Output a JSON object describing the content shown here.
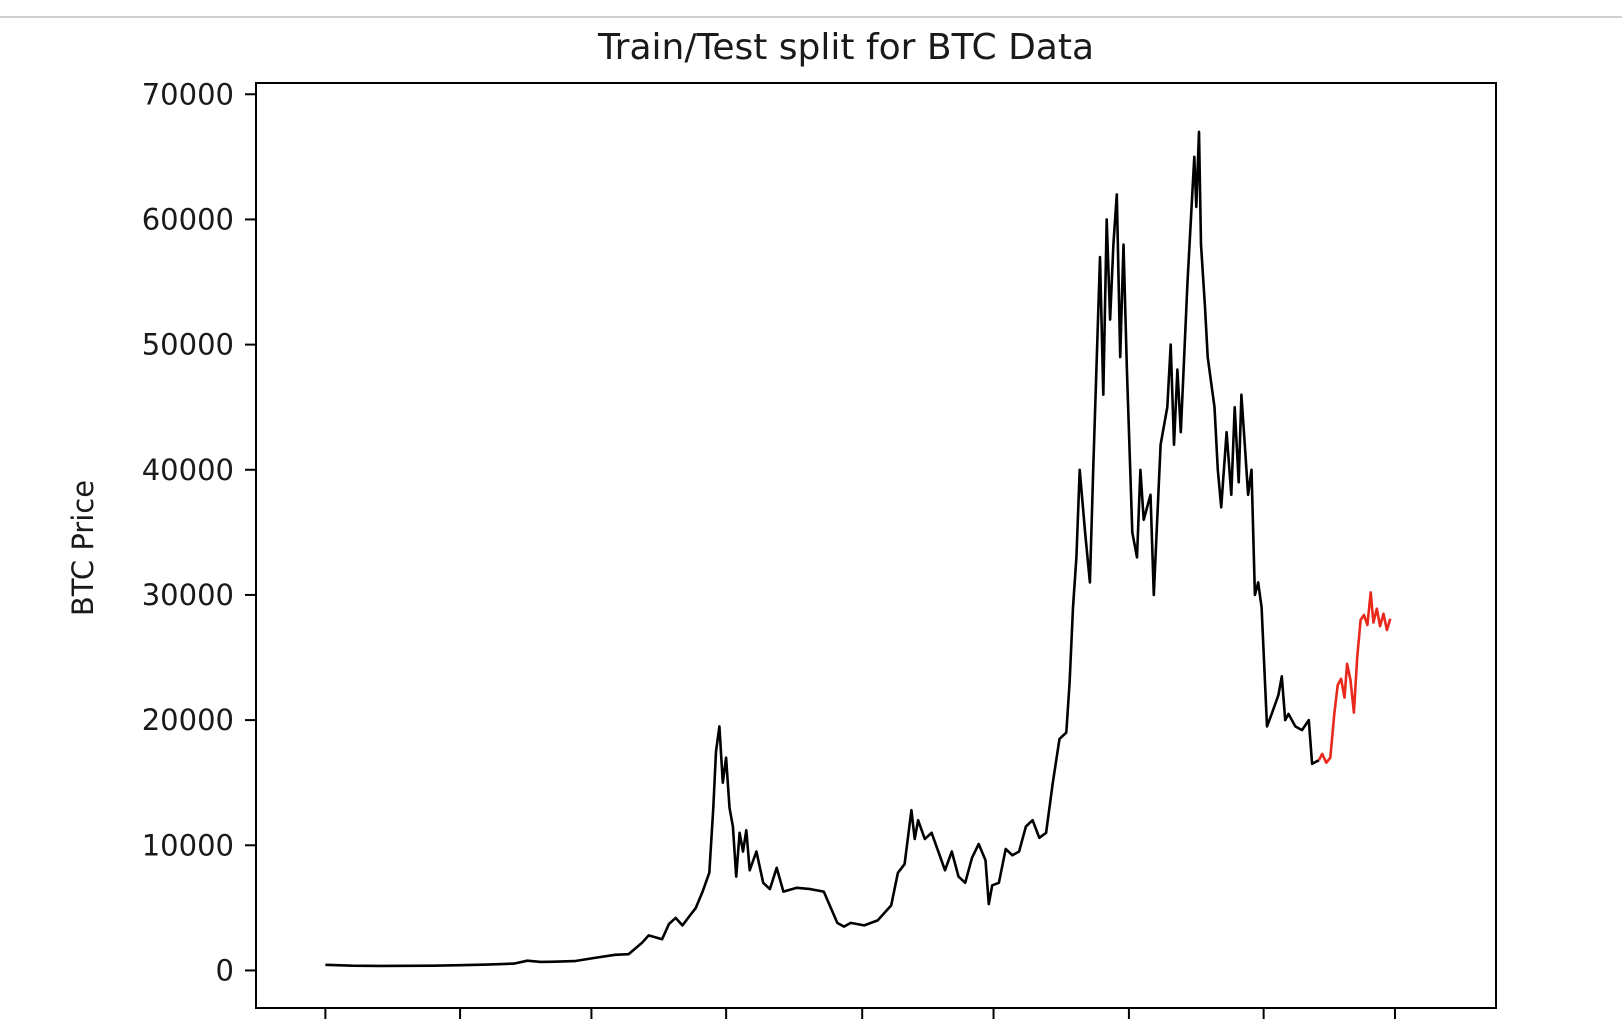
{
  "chart_data": {
    "type": "line",
    "title": "Train/Test split for BTC Data",
    "xlabel": "",
    "ylabel": "BTC Price",
    "ylim": [
      -3000,
      70900
    ],
    "y_ticks": [
      0,
      10000,
      20000,
      30000,
      40000,
      50000,
      60000,
      70000
    ],
    "y_tick_labels": [
      "0",
      "10000",
      "20000",
      "30000",
      "40000",
      "50000",
      "60000",
      "70000"
    ],
    "x_index_range": [
      -103,
      1738
    ],
    "x_tick_indices": [
      0,
      200,
      395,
      595,
      797,
      992,
      1193,
      1393,
      1588
    ],
    "x_tick_labels_visible": false,
    "grid": false,
    "legend": "none",
    "colors": {
      "train": "#000000",
      "test": "#e8291c",
      "axes": "#000000",
      "text": "#1a1a1a"
    },
    "series": [
      {
        "key": "train",
        "values": [
          [
            0,
            450
          ],
          [
            40,
            380
          ],
          [
            80,
            360
          ],
          [
            120,
            370
          ],
          [
            160,
            380
          ],
          [
            200,
            420
          ],
          [
            240,
            470
          ],
          [
            280,
            550
          ],
          [
            300,
            780
          ],
          [
            320,
            680
          ],
          [
            340,
            700
          ],
          [
            370,
            750
          ],
          [
            400,
            1000
          ],
          [
            430,
            1250
          ],
          [
            450,
            1300
          ],
          [
            470,
            2200
          ],
          [
            480,
            2800
          ],
          [
            500,
            2500
          ],
          [
            510,
            3700
          ],
          [
            520,
            4200
          ],
          [
            530,
            3600
          ],
          [
            540,
            4300
          ],
          [
            550,
            5000
          ],
          [
            560,
            6300
          ],
          [
            570,
            7800
          ],
          [
            576,
            13000
          ],
          [
            580,
            17500
          ],
          [
            585,
            19500
          ],
          [
            590,
            15000
          ],
          [
            595,
            17000
          ],
          [
            600,
            13000
          ],
          [
            605,
            11500
          ],
          [
            610,
            7500
          ],
          [
            615,
            11000
          ],
          [
            620,
            9500
          ],
          [
            625,
            11200
          ],
          [
            630,
            8000
          ],
          [
            640,
            9500
          ],
          [
            650,
            7000
          ],
          [
            660,
            6500
          ],
          [
            670,
            8200
          ],
          [
            680,
            6300
          ],
          [
            700,
            6600
          ],
          [
            720,
            6500
          ],
          [
            740,
            6300
          ],
          [
            760,
            3800
          ],
          [
            770,
            3500
          ],
          [
            780,
            3800
          ],
          [
            800,
            3600
          ],
          [
            820,
            4000
          ],
          [
            840,
            5200
          ],
          [
            850,
            7800
          ],
          [
            860,
            8500
          ],
          [
            870,
            12800
          ],
          [
            875,
            10500
          ],
          [
            880,
            12000
          ],
          [
            890,
            10500
          ],
          [
            900,
            11000
          ],
          [
            910,
            9500
          ],
          [
            920,
            8000
          ],
          [
            930,
            9500
          ],
          [
            940,
            7500
          ],
          [
            950,
            7000
          ],
          [
            960,
            9000
          ],
          [
            970,
            10100
          ],
          [
            980,
            8800
          ],
          [
            985,
            5300
          ],
          [
            990,
            6800
          ],
          [
            1000,
            7000
          ],
          [
            1010,
            9700
          ],
          [
            1020,
            9200
          ],
          [
            1030,
            9500
          ],
          [
            1040,
            11500
          ],
          [
            1050,
            12000
          ],
          [
            1060,
            10600
          ],
          [
            1070,
            11000
          ],
          [
            1080,
            15000
          ],
          [
            1090,
            18500
          ],
          [
            1100,
            19000
          ],
          [
            1105,
            23000
          ],
          [
            1110,
            29000
          ],
          [
            1115,
            33000
          ],
          [
            1120,
            40000
          ],
          [
            1128,
            35000
          ],
          [
            1135,
            31000
          ],
          [
            1140,
            40000
          ],
          [
            1150,
            57000
          ],
          [
            1155,
            46000
          ],
          [
            1160,
            60000
          ],
          [
            1165,
            52000
          ],
          [
            1170,
            58000
          ],
          [
            1175,
            62000
          ],
          [
            1180,
            49000
          ],
          [
            1185,
            58000
          ],
          [
            1190,
            48000
          ],
          [
            1198,
            35000
          ],
          [
            1205,
            33000
          ],
          [
            1210,
            40000
          ],
          [
            1215,
            36000
          ],
          [
            1225,
            38000
          ],
          [
            1230,
            30000
          ],
          [
            1240,
            42000
          ],
          [
            1250,
            45000
          ],
          [
            1255,
            50000
          ],
          [
            1260,
            42000
          ],
          [
            1265,
            48000
          ],
          [
            1270,
            43000
          ],
          [
            1280,
            55000
          ],
          [
            1285,
            60000
          ],
          [
            1290,
            65000
          ],
          [
            1293,
            61000
          ],
          [
            1297,
            67000
          ],
          [
            1300,
            58000
          ],
          [
            1306,
            53000
          ],
          [
            1310,
            49000
          ],
          [
            1320,
            45000
          ],
          [
            1325,
            40000
          ],
          [
            1330,
            37000
          ],
          [
            1338,
            43000
          ],
          [
            1345,
            38000
          ],
          [
            1350,
            45000
          ],
          [
            1356,
            39000
          ],
          [
            1360,
            46000
          ],
          [
            1365,
            42000
          ],
          [
            1370,
            38000
          ],
          [
            1375,
            40000
          ],
          [
            1380,
            30000
          ],
          [
            1385,
            31000
          ],
          [
            1390,
            29000
          ],
          [
            1395,
            23000
          ],
          [
            1398,
            19500
          ],
          [
            1405,
            20500
          ],
          [
            1415,
            22000
          ],
          [
            1420,
            23500
          ],
          [
            1425,
            20000
          ],
          [
            1430,
            20500
          ],
          [
            1440,
            19500
          ],
          [
            1450,
            19200
          ],
          [
            1460,
            20000
          ],
          [
            1465,
            16500
          ],
          [
            1475,
            16800
          ]
        ]
      },
      {
        "key": "test",
        "values": [
          [
            1475,
            16800
          ],
          [
            1480,
            17300
          ],
          [
            1486,
            16600
          ],
          [
            1492,
            17000
          ],
          [
            1498,
            20500
          ],
          [
            1503,
            22800
          ],
          [
            1508,
            23300
          ],
          [
            1513,
            21800
          ],
          [
            1517,
            24500
          ],
          [
            1522,
            23200
          ],
          [
            1527,
            20600
          ],
          [
            1532,
            25000
          ],
          [
            1537,
            28000
          ],
          [
            1542,
            28400
          ],
          [
            1547,
            27600
          ],
          [
            1552,
            30200
          ],
          [
            1556,
            27800
          ],
          [
            1561,
            28900
          ],
          [
            1566,
            27500
          ],
          [
            1571,
            28500
          ],
          [
            1576,
            27200
          ],
          [
            1581,
            28100
          ]
        ]
      }
    ]
  }
}
